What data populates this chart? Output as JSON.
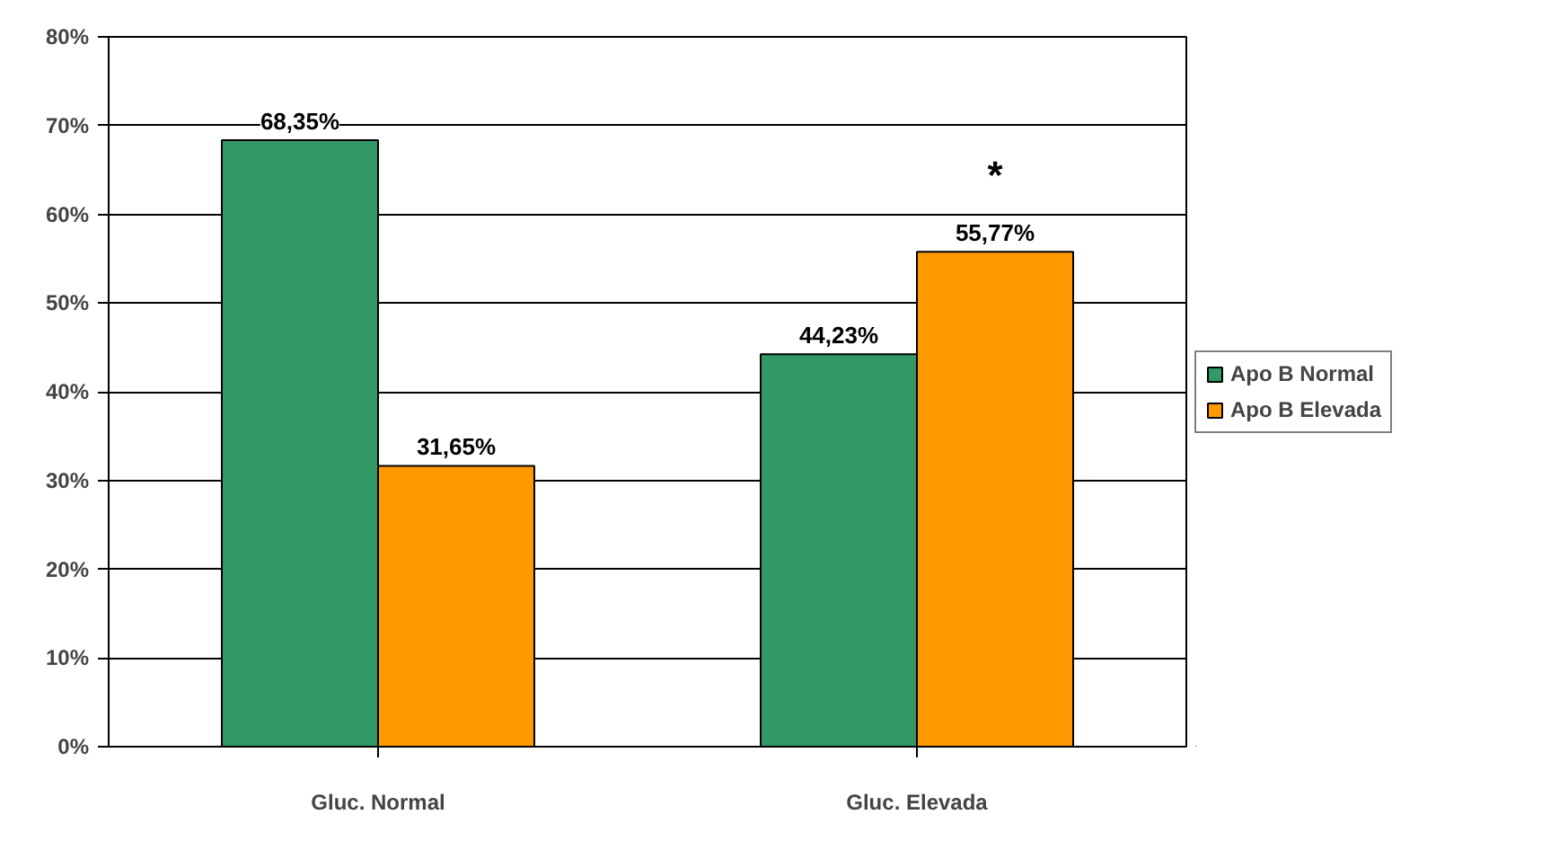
{
  "chart_data": {
    "type": "bar",
    "categories": [
      "Gluc. Normal",
      "Gluc. Elevada"
    ],
    "series": [
      {
        "name": "Apo B Normal",
        "color": "#339966",
        "values": [
          68.35,
          44.23
        ],
        "value_labels": [
          "68,35%",
          "44,23%"
        ]
      },
      {
        "name": "Apo B Elevada",
        "color": "#ff9900",
        "values": [
          31.65,
          55.77
        ],
        "value_labels": [
          "31,65%",
          "55,77%"
        ]
      }
    ],
    "ylim": [
      0,
      80
    ],
    "yticks": [
      {
        "value": 0,
        "label": "0%"
      },
      {
        "value": 10,
        "label": "10%"
      },
      {
        "value": 20,
        "label": "20%"
      },
      {
        "value": 30,
        "label": "30%"
      },
      {
        "value": 40,
        "label": "40%"
      },
      {
        "value": 50,
        "label": "50%"
      },
      {
        "value": 60,
        "label": "60%"
      },
      {
        "value": 70,
        "label": "70%"
      },
      {
        "value": 80,
        "label": "80%"
      }
    ],
    "annotations": [
      "*"
    ],
    "grid": "y",
    "legend": "right"
  }
}
